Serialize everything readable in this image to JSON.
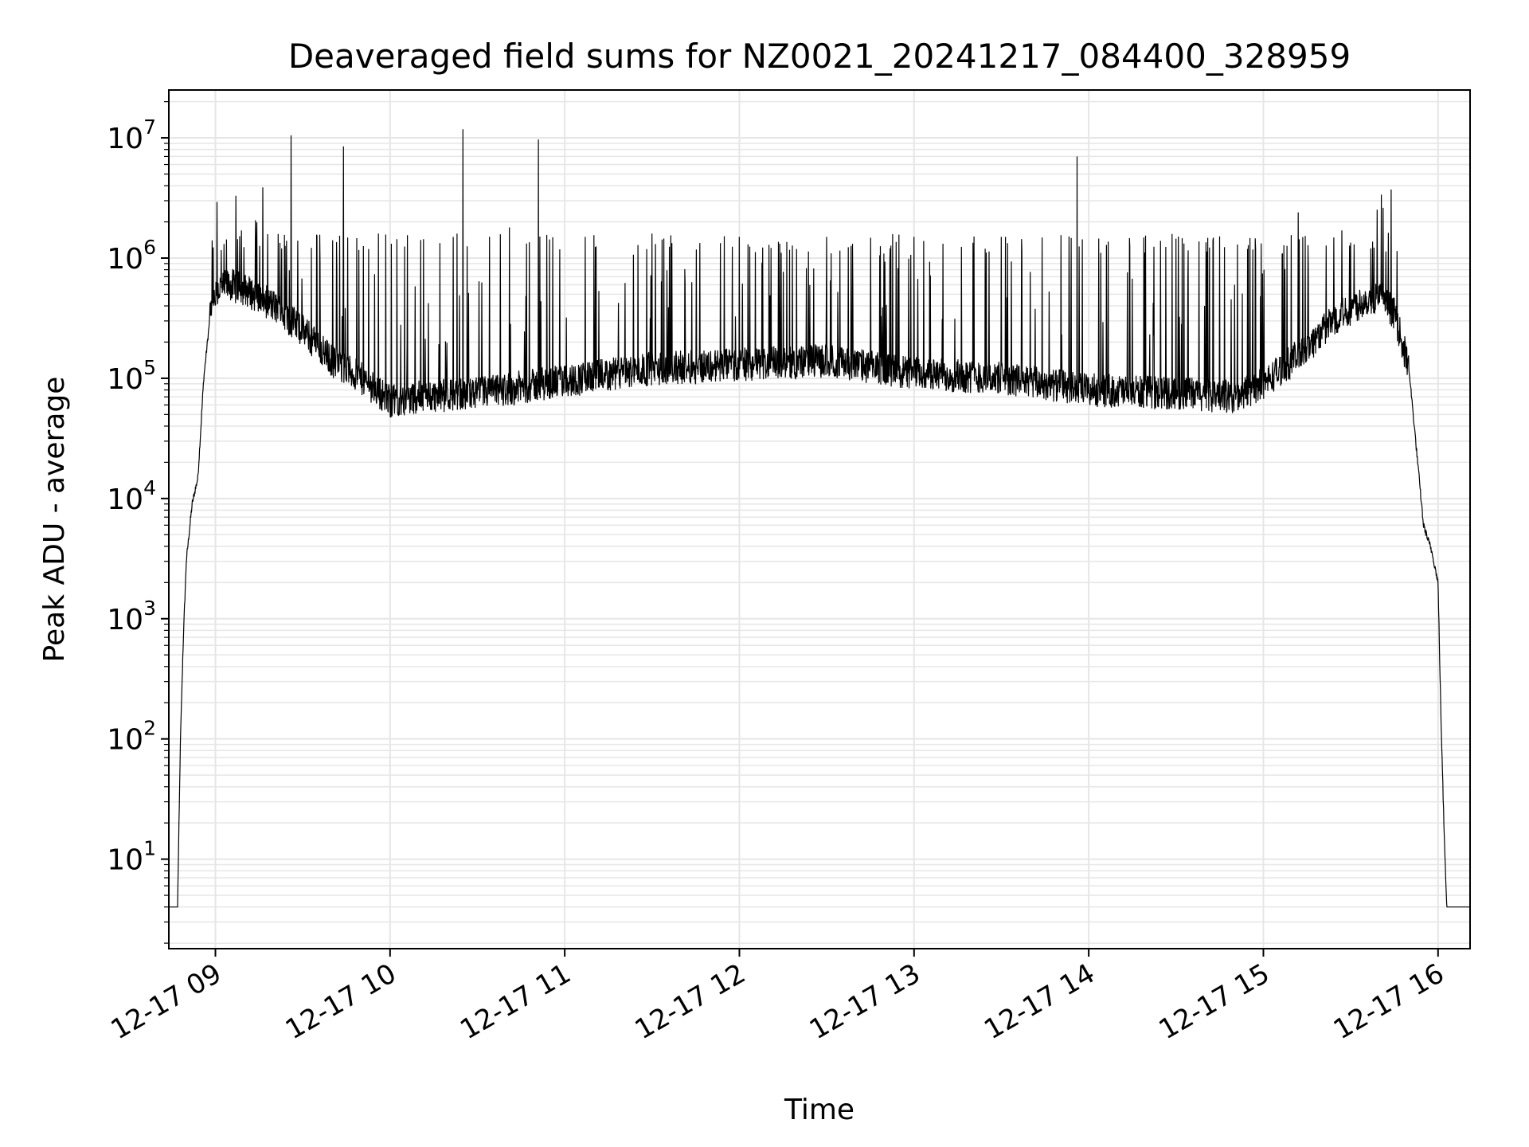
{
  "chart_data": {
    "type": "line",
    "title": "Deaveraged field sums for NZ0021_20241217_084400_328959",
    "xlabel": "Time",
    "ylabel": "Peak ADU - average",
    "y_scale": "log",
    "ylim": [
      1.8,
      25000000
    ],
    "xlim": [
      "2024-12-17 08:44",
      "2024-12-17 16:11"
    ],
    "grid": true,
    "line_color": "#000000",
    "grid_color": "#e6e6e6",
    "x_ticks": [
      {
        "time": "2024-12-17 09:00",
        "label": "12-17 09"
      },
      {
        "time": "2024-12-17 10:00",
        "label": "12-17 10"
      },
      {
        "time": "2024-12-17 11:00",
        "label": "12-17 11"
      },
      {
        "time": "2024-12-17 12:00",
        "label": "12-17 12"
      },
      {
        "time": "2024-12-17 13:00",
        "label": "12-17 13"
      },
      {
        "time": "2024-12-17 14:00",
        "label": "12-17 14"
      },
      {
        "time": "2024-12-17 15:00",
        "label": "12-17 15"
      },
      {
        "time": "2024-12-17 16:00",
        "label": "12-17 16"
      }
    ],
    "y_ticks": [
      {
        "value": 10,
        "base": "10",
        "exp": "1"
      },
      {
        "value": 100,
        "base": "10",
        "exp": "2"
      },
      {
        "value": 1000,
        "base": "10",
        "exp": "3"
      },
      {
        "value": 10000,
        "base": "10",
        "exp": "4"
      },
      {
        "value": 100000,
        "base": "10",
        "exp": "5"
      },
      {
        "value": 1000000,
        "base": "10",
        "exp": "6"
      },
      {
        "value": 10000000,
        "base": "10",
        "exp": "7"
      }
    ],
    "series": [
      {
        "baseline": [
          [
            "2024-12-17 08:44",
            4
          ],
          [
            "2024-12-17 08:47",
            4
          ],
          [
            "2024-12-17 08:48",
            100
          ],
          [
            "2024-12-17 08:49",
            700
          ],
          [
            "2024-12-17 08:50",
            3000
          ],
          [
            "2024-12-17 08:52",
            9000
          ],
          [
            "2024-12-17 08:54",
            15000
          ],
          [
            "2024-12-17 08:56",
            100000
          ],
          [
            "2024-12-17 08:58",
            300000
          ],
          [
            "2024-12-17 09:01",
            550000
          ],
          [
            "2024-12-17 09:05",
            600000
          ],
          [
            "2024-12-17 09:10",
            550000
          ],
          [
            "2024-12-17 09:20",
            400000
          ],
          [
            "2024-12-17 09:30",
            250000
          ],
          [
            "2024-12-17 09:40",
            140000
          ],
          [
            "2024-12-17 09:50",
            100000
          ],
          [
            "2024-12-17 10:00",
            65000
          ],
          [
            "2024-12-17 10:10",
            70000
          ],
          [
            "2024-12-17 10:30",
            75000
          ],
          [
            "2024-12-17 11:00",
            95000
          ],
          [
            "2024-12-17 11:30",
            120000
          ],
          [
            "2024-12-17 12:00",
            130000
          ],
          [
            "2024-12-17 12:30",
            140000
          ],
          [
            "2024-12-17 13:00",
            110000
          ],
          [
            "2024-12-17 13:30",
            100000
          ],
          [
            "2024-12-17 14:00",
            80000
          ],
          [
            "2024-12-17 14:30",
            75000
          ],
          [
            "2024-12-17 14:50",
            70000
          ],
          [
            "2024-12-17 15:00",
            90000
          ],
          [
            "2024-12-17 15:15",
            180000
          ],
          [
            "2024-12-17 15:25",
            320000
          ],
          [
            "2024-12-17 15:35",
            450000
          ],
          [
            "2024-12-17 15:40",
            480000
          ],
          [
            "2024-12-17 15:45",
            350000
          ],
          [
            "2024-12-17 15:50",
            120000
          ],
          [
            "2024-12-17 15:53",
            20000
          ],
          [
            "2024-12-17 15:55",
            6000
          ],
          [
            "2024-12-17 15:58",
            3500
          ],
          [
            "2024-12-17 16:00",
            2000
          ],
          [
            "2024-12-17 16:01",
            150
          ],
          [
            "2024-12-17 16:02",
            20
          ],
          [
            "2024-12-17 16:03",
            4
          ],
          [
            "2024-12-17 16:11",
            4
          ]
        ],
        "spikes": [
          [
            "2024-12-17 09:07",
            3300000
          ],
          [
            "2024-12-17 09:09",
            1700000
          ],
          [
            "2024-12-17 09:26",
            10500000
          ],
          [
            "2024-12-17 09:44",
            8500000
          ],
          [
            "2024-12-17 09:56",
            1600000
          ],
          [
            "2024-12-17 10:06",
            1550000
          ],
          [
            "2024-12-17 10:23",
            1600000
          ],
          [
            "2024-12-17 10:25",
            11800000
          ],
          [
            "2024-12-17 10:41",
            1800000
          ],
          [
            "2024-12-17 10:51",
            9700000
          ],
          [
            "2024-12-17 11:10",
            1550000
          ],
          [
            "2024-12-17 11:30",
            1600000
          ],
          [
            "2024-12-17 12:00",
            1500000
          ],
          [
            "2024-12-17 12:30",
            1500000
          ],
          [
            "2024-12-17 13:00",
            1500000
          ],
          [
            "2024-12-17 13:30",
            1500000
          ],
          [
            "2024-12-17 13:56",
            7000000
          ],
          [
            "2024-12-17 14:30",
            1450000
          ],
          [
            "2024-12-17 15:12",
            2400000
          ],
          [
            "2024-12-17 15:27",
            1700000
          ]
        ]
      }
    ]
  }
}
